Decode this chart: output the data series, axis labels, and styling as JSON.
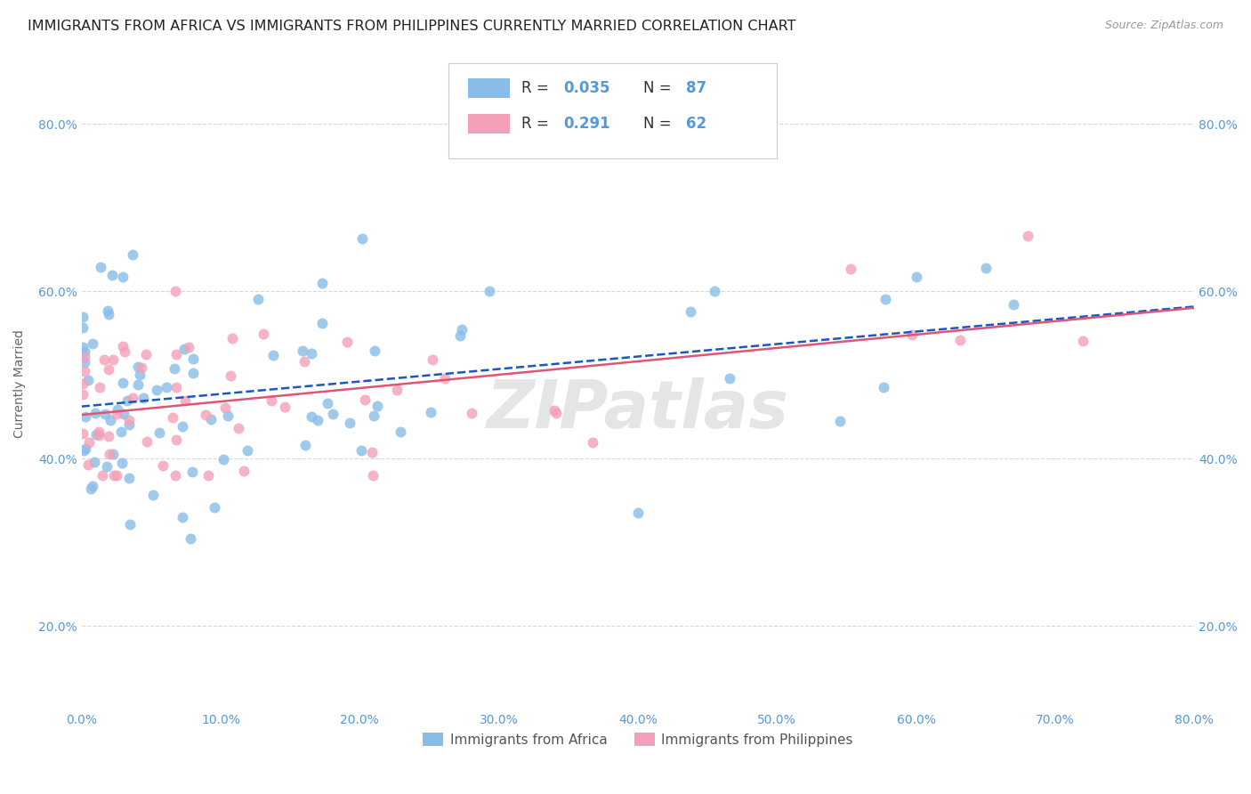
{
  "title": "IMMIGRANTS FROM AFRICA VS IMMIGRANTS FROM PHILIPPINES CURRENTLY MARRIED CORRELATION CHART",
  "source": "Source: ZipAtlas.com",
  "ylabel": "Currently Married",
  "xlim": [
    0.0,
    0.8
  ],
  "ylim": [
    0.1,
    0.88
  ],
  "africa_R": 0.035,
  "africa_N": 87,
  "philippines_R": 0.291,
  "philippines_N": 62,
  "africa_color": "#89bde8",
  "philippines_color": "#f4a0b8",
  "africa_line_color": "#1a56c4",
  "philippines_line_color": "#e05575",
  "legend_label_africa": "Immigrants from Africa",
  "legend_label_philippines": "Immigrants from Philippines",
  "watermark": "ZIPatlas",
  "background_color": "#ffffff",
  "grid_color": "#d8d8d8",
  "title_fontsize": 11.5,
  "source_fontsize": 9,
  "axis_label_fontsize": 10,
  "tick_fontsize": 10,
  "tick_color": "#5599dd",
  "africa_seed": 12,
  "philippines_seed": 55
}
